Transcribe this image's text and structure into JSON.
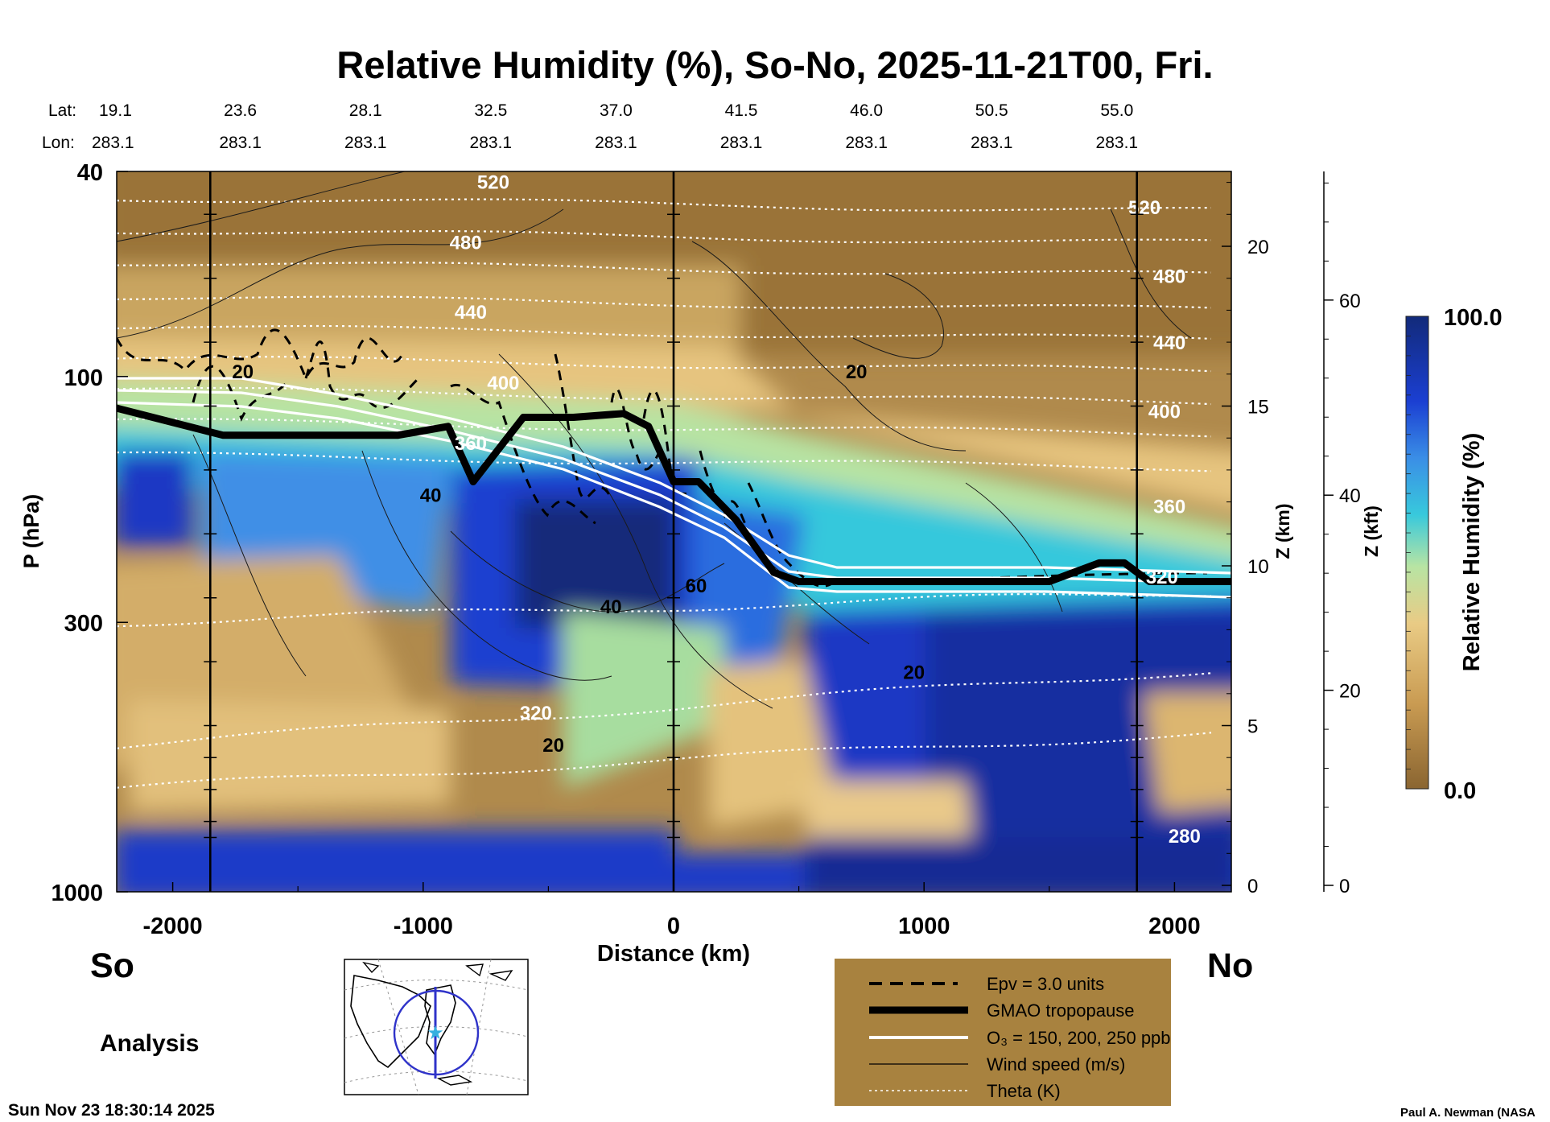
{
  "colors": {
    "bg": "#ffffff",
    "rh_low": "#8a6531",
    "rh_mid": "#e5c57e",
    "rh_green": "#b6e3a1",
    "rh_cyan": "#31c6dd",
    "rh_blue": "#1a3fd0",
    "rh_high": "#122a7a",
    "legend_box": "#a8823f",
    "map_circle": "#2f33c9",
    "map_star": "#35b0df"
  },
  "chart_data": {
    "type": "heatmap",
    "title": "Relative Humidity (%), So-No, 2025-11-21T00, Fri.",
    "xlabel": "Distance (km)",
    "ylabel": "P (hPa)",
    "ylabel_right1": "Z (km)",
    "ylabel_right2": "Z (kft)",
    "colorbar_label": "Relative Humidity (%)",
    "xlim": [
      -2230,
      2230
    ],
    "ylim_hpa": [
      1000,
      40
    ],
    "x_ticks": [
      -2000,
      -1000,
      0,
      1000,
      2000
    ],
    "x_tick_labels": [
      "-2000",
      "-1000",
      "0",
      "1000",
      "2000"
    ],
    "p_ticks": [
      40,
      100,
      300,
      1000
    ],
    "p_tick_labels": [
      "40",
      "100",
      "300",
      "1000"
    ],
    "z_km_ticks": [
      0,
      5,
      10,
      15,
      20
    ],
    "z_km_tick_labels": [
      "0",
      "5",
      "10",
      "15",
      "20"
    ],
    "z_kft_ticks": [
      0,
      20,
      40,
      60
    ],
    "z_kft_tick_labels": [
      "0",
      "20",
      "40",
      "60"
    ],
    "colorbar_range": [
      0.0,
      100.0
    ],
    "colorbar_labels": [
      "100.0",
      "0.0"
    ],
    "lat_label": "Lat:",
    "lon_label": "Lon:",
    "lat_values": [
      "19.1",
      "23.6",
      "28.1",
      "32.5",
      "37.0",
      "41.5",
      "46.0",
      "50.5",
      "55.0"
    ],
    "lon_values": [
      "283.1",
      "283.1",
      "283.1",
      "283.1",
      "283.1",
      "283.1",
      "283.1",
      "283.1",
      "283.1"
    ],
    "station_x_km": [
      -2230,
      -1730,
      -1230,
      -730,
      -230,
      270,
      770,
      1270,
      1770
    ],
    "vertical_lines_km": [
      -1850,
      0,
      1850
    ],
    "tropopause": {
      "name": "GMAO tropopause",
      "x": [
        -2230,
        -1800,
        -1100,
        -900,
        -800,
        -600,
        -400,
        -200,
        -100,
        0,
        100,
        250,
        400,
        500,
        1500,
        1700,
        1800,
        1900,
        2230
      ],
      "p": [
        115,
        130,
        130,
        125,
        160,
        120,
        120,
        118,
        125,
        160,
        160,
        190,
        240,
        250,
        250,
        230,
        230,
        250,
        250
      ]
    },
    "theta_labels": [
      {
        "text": "520",
        "x": -720,
        "p": 42
      },
      {
        "text": "480",
        "x": -830,
        "p": 55
      },
      {
        "text": "440",
        "x": -810,
        "p": 75
      },
      {
        "text": "400",
        "x": -680,
        "p": 103
      },
      {
        "text": "360",
        "x": -810,
        "p": 135
      },
      {
        "text": "320",
        "x": -550,
        "p": 450
      },
      {
        "text": "520",
        "x": 1880,
        "p": 47
      },
      {
        "text": "480",
        "x": 1980,
        "p": 64
      },
      {
        "text": "440",
        "x": 1980,
        "p": 86
      },
      {
        "text": "400",
        "x": 1960,
        "p": 117
      },
      {
        "text": "360",
        "x": 1980,
        "p": 179
      },
      {
        "text": "320",
        "x": 1950,
        "p": 245
      },
      {
        "text": "280",
        "x": 2040,
        "p": 780
      }
    ],
    "wind_labels": [
      {
        "text": "20",
        "x": -1720,
        "p": 98
      },
      {
        "text": "40",
        "x": -970,
        "p": 170
      },
      {
        "text": "40",
        "x": -250,
        "p": 280
      },
      {
        "text": "60",
        "x": 90,
        "p": 255
      },
      {
        "text": "20",
        "x": 730,
        "p": 98
      },
      {
        "text": "20",
        "x": 960,
        "p": 375
      },
      {
        "text": "20",
        "x": -480,
        "p": 520
      }
    ],
    "legend": [
      {
        "label": "Epv = 3.0 units",
        "style": "dashed"
      },
      {
        "label": "GMAO tropopause",
        "style": "thick"
      },
      {
        "label": "O₃ = 150, 200, 250 ppb",
        "style": "white"
      },
      {
        "label": "Wind speed (m/s)",
        "style": "thin"
      },
      {
        "label": "Theta (K)",
        "style": "dotted"
      }
    ]
  },
  "labels": {
    "south": "So",
    "north": "No",
    "analysis": "Analysis",
    "timestamp": "Sun Nov 23 18:30:14 2025",
    "credit": "Paul A. Newman (NASA"
  }
}
